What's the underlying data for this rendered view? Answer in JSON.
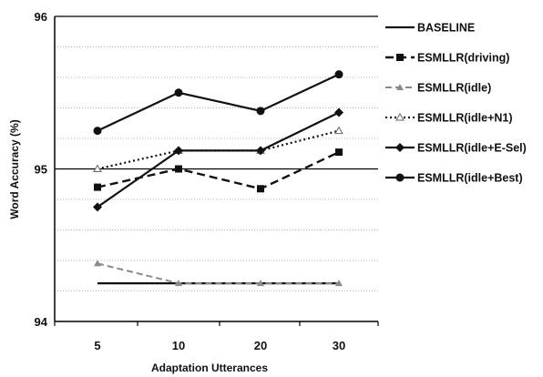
{
  "chart_data": {
    "type": "line",
    "title": "",
    "xlabel": "Adaptation Utterances",
    "ylabel": "Word Accuracy (%)",
    "categories": [
      "5",
      "10",
      "20",
      "30"
    ],
    "ylim": [
      94,
      96
    ],
    "yticks": [
      "94",
      "95",
      "96"
    ],
    "grid": "horizontal dotted every 0.2",
    "legend": "right",
    "series": [
      {
        "name": "BASELINE",
        "values": [
          94.25,
          94.25,
          94.25,
          94.25
        ],
        "style": "solid",
        "marker": "none"
      },
      {
        "name": "ESMLLR(driving)",
        "values": [
          94.88,
          95.0,
          94.87,
          95.11
        ],
        "style": "dashed",
        "marker": "square"
      },
      {
        "name": "ESMLLR(idle)",
        "values": [
          94.38,
          94.25,
          94.25,
          94.25
        ],
        "style": "dashed-light",
        "marker": "triangle"
      },
      {
        "name": "ESMLLR(idle+N1)",
        "values": [
          95.0,
          95.12,
          95.12,
          95.25
        ],
        "style": "dotted",
        "marker": "triangle-open"
      },
      {
        "name": "ESMLLR(idle+E-Sel)",
        "values": [
          94.75,
          95.12,
          95.12,
          95.37
        ],
        "style": "solid",
        "marker": "diamond"
      },
      {
        "name": "ESMLLR(idle+Best)",
        "values": [
          95.25,
          95.5,
          95.38,
          95.62
        ],
        "style": "solid",
        "marker": "circle"
      }
    ]
  }
}
